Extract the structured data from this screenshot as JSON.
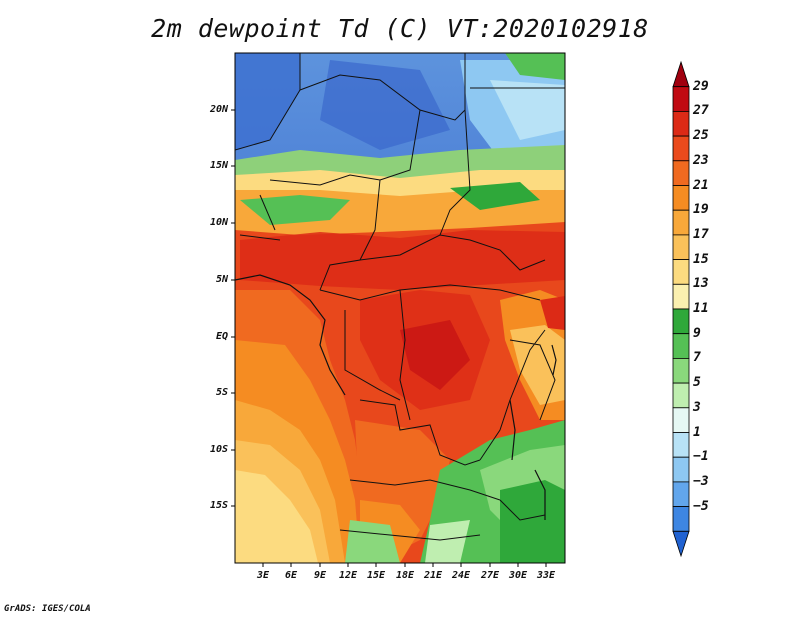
{
  "title": "2m dewpoint Td (C) VT:2020102918",
  "credit": "GrADS: IGES/COLA",
  "map": {
    "region": "Central / Southern Africa",
    "lat_labels": [
      "20N",
      "15N",
      "10N",
      "5N",
      "EQ",
      "5S",
      "10S",
      "15S"
    ],
    "lon_labels": [
      "3E",
      "6E",
      "9E",
      "12E",
      "15E",
      "18E",
      "21E",
      "24E",
      "27E",
      "30E",
      "33E"
    ]
  },
  "colorbar": {
    "labels": [
      "29",
      "27",
      "25",
      "23",
      "21",
      "19",
      "17",
      "15",
      "13",
      "11",
      "9",
      "7",
      "5",
      "3",
      "1",
      "−1",
      "−3",
      "−5"
    ],
    "colors": [
      "#a0000f",
      "#c00a12",
      "#dc2a16",
      "#ea4a1c",
      "#f06a20",
      "#f58c22",
      "#f8a83a",
      "#fac15a",
      "#fcdb80",
      "#fbf0b0",
      "#2fa83a",
      "#55c055",
      "#8ad87c",
      "#bfeeb0",
      "#e6f8f4",
      "#b8e2f6",
      "#8ec8f2",
      "#62a6ec",
      "#3e86e2",
      "#2062d2"
    ]
  }
}
